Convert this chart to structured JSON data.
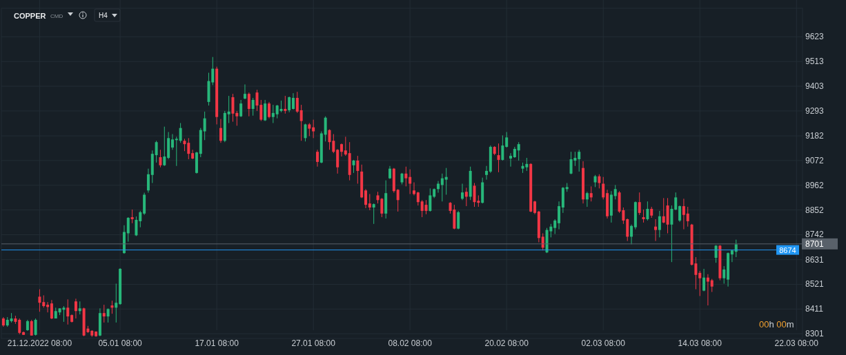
{
  "chart_data": {
    "type": "candlestick",
    "title": "COPPER",
    "annotations": [
      "CMD",
      "H4",
      "00h 00m"
    ],
    "categories": [
      null,
      null,
      null,
      null,
      null,
      null,
      null,
      null,
      null,
      "21.12.2022 08:00",
      null,
      null,
      null,
      null,
      null,
      null,
      null,
      null,
      null,
      null,
      null,
      null,
      null,
      null,
      null,
      null,
      null,
      null,
      null,
      "05.01 08:00",
      null,
      null,
      null,
      null,
      null,
      null,
      null,
      null,
      null,
      null,
      null,
      null,
      null,
      null,
      null,
      null,
      null,
      null,
      null,
      null,
      null,
      null,
      null,
      "17.01 08:00",
      null,
      null,
      null,
      null,
      null,
      null,
      null,
      null,
      null,
      null,
      null,
      null,
      null,
      null,
      null,
      null,
      null,
      null,
      null,
      null,
      null,
      null,
      null,
      "27.01 08:00",
      null,
      null,
      null,
      null,
      null,
      null,
      null,
      null,
      null,
      null,
      null,
      null,
      null,
      null,
      null,
      null,
      null,
      null,
      null,
      null,
      null,
      null,
      null,
      "08.02 08:00",
      null,
      null,
      null,
      null,
      null,
      null,
      null,
      null,
      null,
      null,
      null,
      null,
      null,
      null,
      null,
      null,
      null,
      null,
      null,
      null,
      null,
      null,
      null,
      "20.02 08:00",
      null,
      null,
      null,
      null,
      null,
      null,
      null,
      null,
      null,
      null,
      null,
      null,
      null,
      null,
      null,
      null,
      null,
      null,
      null,
      null,
      null,
      null,
      null,
      "02.03 08:00",
      null,
      null,
      null,
      null,
      null,
      null,
      null,
      null,
      null,
      null,
      null,
      null,
      null,
      null,
      null,
      null,
      null,
      null,
      null,
      null,
      null,
      null,
      null,
      "14.03 08:00",
      null,
      null,
      null,
      null,
      null,
      null,
      null,
      null,
      null,
      null,
      null,
      null,
      null,
      null,
      null,
      null,
      null,
      null,
      null,
      null,
      null,
      null,
      null,
      "22.03 08:00",
      null
    ],
    "ohlc": [
      [
        8369,
        8375,
        8332,
        8338
      ],
      [
        8338,
        8375,
        8332,
        8363
      ],
      [
        8357,
        8393,
        8351,
        8369
      ],
      [
        8369,
        8381,
        8345,
        8354
      ],
      [
        8363,
        8369,
        8299,
        8305
      ],
      [
        8308,
        8311,
        8296,
        8296
      ],
      [
        8317,
        8363,
        8314,
        8357
      ],
      [
        8357,
        8363,
        8293,
        8293
      ],
      [
        8296,
        8369,
        8293,
        8363
      ],
      [
        8466,
        8499,
        8399,
        8439
      ],
      [
        8442,
        8472,
        8417,
        8424
      ],
      [
        8430,
        8442,
        8396,
        8420
      ],
      [
        8436,
        8451,
        8366,
        8369
      ],
      [
        8369,
        8417,
        8369,
        8402
      ],
      [
        8396,
        8414,
        8384,
        8414
      ],
      [
        8408,
        8424,
        8354,
        8417
      ],
      [
        8417,
        8454,
        8342,
        8378
      ],
      [
        8384,
        8387,
        8351,
        8354
      ],
      [
        8445,
        8457,
        8369,
        8402
      ],
      [
        8402,
        8445,
        8387,
        8414
      ],
      [
        8414,
        8417,
        8290,
        8293
      ],
      [
        8324,
        8336,
        8305,
        8308
      ],
      [
        8314,
        8317,
        8287,
        8293
      ],
      [
        8311,
        8311,
        8287,
        8290
      ],
      [
        8293,
        8414,
        8290,
        8393
      ],
      [
        8393,
        8430,
        8351,
        8378
      ],
      [
        8378,
        8414,
        8351,
        8411
      ],
      [
        8427,
        8448,
        8390,
        8417
      ],
      [
        8417,
        8524,
        8351,
        8439
      ],
      [
        8433,
        8593,
        8430,
        8590
      ],
      [
        8660,
        8784,
        8657,
        8754
      ],
      [
        8748,
        8820,
        8711,
        8817
      ],
      [
        8820,
        8854,
        8793,
        8811
      ],
      [
        8739,
        8823,
        8736,
        8808
      ],
      [
        8802,
        8848,
        8775,
        8842
      ],
      [
        8836,
        8929,
        8830,
        8920
      ],
      [
        8939,
        9036,
        8929,
        9011
      ],
      [
        9008,
        9117,
        8972,
        9102
      ],
      [
        9096,
        9160,
        9063,
        9154
      ],
      [
        9087,
        9120,
        9042,
        9051
      ],
      [
        9051,
        9223,
        9048,
        9090
      ],
      [
        9084,
        9199,
        9078,
        9172
      ],
      [
        9130,
        9190,
        9120,
        9166
      ],
      [
        9163,
        9178,
        9048,
        9169
      ],
      [
        9160,
        9239,
        9151,
        9217
      ],
      [
        9160,
        9169,
        9114,
        9145
      ],
      [
        9151,
        9172,
        9078,
        9102
      ],
      [
        9105,
        9120,
        9078,
        9081
      ],
      [
        9017,
        9111,
        9014,
        9108
      ],
      [
        9102,
        9217,
        9087,
        9208
      ],
      [
        9202,
        9290,
        9163,
        9260
      ],
      [
        9333,
        9463,
        9317,
        9426
      ],
      [
        9420,
        9533,
        9408,
        9481
      ],
      [
        9481,
        9490,
        9233,
        9266
      ],
      [
        9217,
        9257,
        9151,
        9160
      ],
      [
        9160,
        9293,
        9154,
        9284
      ],
      [
        9278,
        9360,
        9239,
        9290
      ],
      [
        9354,
        9369,
        9245,
        9281
      ],
      [
        9284,
        9293,
        9227,
        9269
      ],
      [
        9269,
        9342,
        9266,
        9326
      ],
      [
        9348,
        9411,
        9345,
        9369
      ],
      [
        9369,
        9375,
        9269,
        9302
      ],
      [
        9302,
        9351,
        9272,
        9342
      ],
      [
        9375,
        9387,
        9293,
        9317
      ],
      [
        9320,
        9342,
        9248,
        9254
      ],
      [
        9251,
        9342,
        9248,
        9326
      ],
      [
        9326,
        9333,
        9260,
        9266
      ],
      [
        9266,
        9320,
        9239,
        9284
      ],
      [
        9278,
        9320,
        9260,
        9317
      ],
      [
        9293,
        9339,
        9287,
        9302
      ],
      [
        9302,
        9360,
        9281,
        9293
      ],
      [
        9296,
        9357,
        9287,
        9354
      ],
      [
        9302,
        9372,
        9299,
        9351
      ],
      [
        9351,
        9378,
        9284,
        9290
      ],
      [
        9296,
        9320,
        9160,
        9248
      ],
      [
        9172,
        9236,
        9157,
        9233
      ],
      [
        9233,
        9239,
        9181,
        9214
      ],
      [
        9220,
        9254,
        9172,
        9202
      ],
      [
        9111,
        9120,
        9045,
        9066
      ],
      [
        9063,
        9202,
        9060,
        9193
      ],
      [
        9187,
        9269,
        9157,
        9263
      ],
      [
        9208,
        9211,
        9120,
        9154
      ],
      [
        9160,
        9190,
        9105,
        9111
      ],
      [
        9120,
        9123,
        9014,
        9042
      ],
      [
        9145,
        9148,
        9090,
        9111
      ],
      [
        9117,
        9178,
        9093,
        9099
      ],
      [
        9105,
        9154,
        8984,
        9008
      ],
      [
        9051,
        9075,
        9017,
        9072
      ],
      [
        9072,
        9093,
        8969,
        9026
      ],
      [
        9023,
        9054,
        8905,
        8908
      ],
      [
        8939,
        8945,
        8860,
        8875
      ],
      [
        8881,
        8923,
        8851,
        8863
      ],
      [
        8863,
        8881,
        8790,
        8878
      ],
      [
        8917,
        8933,
        8881,
        8896
      ],
      [
        8902,
        8905,
        8820,
        8836
      ],
      [
        8836,
        8984,
        8814,
        8927
      ],
      [
        8993,
        9048,
        8990,
        9036
      ],
      [
        9036,
        9039,
        8929,
        8936
      ],
      [
        8942,
        8945,
        8845,
        8896
      ],
      [
        8975,
        9017,
        8966,
        9014
      ],
      [
        9014,
        9045,
        8957,
        8993
      ],
      [
        8999,
        9033,
        8923,
        8969
      ],
      [
        8939,
        8975,
        8917,
        8923
      ],
      [
        8930,
        8933,
        8872,
        8887
      ],
      [
        8890,
        8896,
        8820,
        8848
      ],
      [
        8875,
        8896,
        8833,
        8848
      ],
      [
        8848,
        8948,
        8845,
        8917
      ],
      [
        8911,
        8948,
        8905,
        8945
      ],
      [
        8945,
        8981,
        8929,
        8969
      ],
      [
        8963,
        9014,
        8890,
        8993
      ],
      [
        8987,
        9039,
        8920,
        8999
      ],
      [
        8884,
        8887,
        8836,
        8848
      ],
      [
        8854,
        8875,
        8766,
        8769
      ],
      [
        8769,
        8848,
        8766,
        8842
      ],
      [
        8902,
        8969,
        8896,
        8930
      ],
      [
        8933,
        8951,
        8869,
        8911
      ],
      [
        8911,
        9045,
        8896,
        9026
      ],
      [
        8960,
        8972,
        8866,
        8887
      ],
      [
        8893,
        8917,
        8866,
        8884
      ],
      [
        8884,
        8996,
        8881,
        8975
      ],
      [
        9008,
        9048,
        8987,
        9026
      ],
      [
        9023,
        9139,
        9017,
        9133
      ],
      [
        9133,
        9136,
        9096,
        9102
      ],
      [
        9096,
        9148,
        9020,
        9075
      ],
      [
        9075,
        9184,
        9072,
        9139
      ],
      [
        9133,
        9199,
        9130,
        9175
      ],
      [
        9081,
        9105,
        9045,
        9093
      ],
      [
        9087,
        9133,
        9084,
        9124
      ],
      [
        9117,
        9154,
        9072,
        9145
      ],
      [
        9036,
        9063,
        9017,
        9048
      ],
      [
        9042,
        9084,
        9026,
        9057
      ],
      [
        9057,
        9060,
        8842,
        8845
      ],
      [
        8890,
        8893,
        8833,
        8839
      ],
      [
        8845,
        8848,
        8708,
        8727
      ],
      [
        8733,
        8748,
        8672,
        8684
      ],
      [
        8663,
        8772,
        8660,
        8763
      ],
      [
        8757,
        8790,
        8730,
        8778
      ],
      [
        8772,
        8811,
        8745,
        8805
      ],
      [
        8793,
        8890,
        8766,
        8869
      ],
      [
        8863,
        8954,
        8839,
        8951
      ],
      [
        8945,
        8972,
        8933,
        8954
      ],
      [
        9014,
        9111,
        9011,
        9078
      ],
      [
        9072,
        9111,
        9048,
        9084
      ],
      [
        9078,
        9120,
        9023,
        9111
      ],
      [
        9039,
        9069,
        8881,
        8899
      ],
      [
        8899,
        8933,
        8866,
        8927
      ],
      [
        8927,
        8957,
        8890,
        8908
      ],
      [
        8975,
        9008,
        8954,
        9002
      ],
      [
        9002,
        9011,
        8948,
        8972
      ],
      [
        8969,
        8999,
        8899,
        8908
      ],
      [
        8927,
        8942,
        8814,
        8824
      ],
      [
        8827,
        8936,
        8796,
        8920
      ],
      [
        8914,
        8963,
        8899,
        8945
      ],
      [
        8930,
        8936,
        8839,
        8845
      ],
      [
        8851,
        8863,
        8790,
        8805
      ],
      [
        8811,
        8814,
        8714,
        8733
      ],
      [
        8733,
        8787,
        8699,
        8781
      ],
      [
        8775,
        8890,
        8766,
        8887
      ],
      [
        8887,
        8930,
        8830,
        8839
      ],
      [
        8820,
        8854,
        8796,
        8811
      ],
      [
        8811,
        8890,
        8805,
        8857
      ],
      [
        8857,
        8866,
        8817,
        8827
      ],
      [
        8778,
        8811,
        8714,
        8763
      ],
      [
        8763,
        8848,
        8730,
        8824
      ],
      [
        8824,
        8905,
        8793,
        8796
      ],
      [
        8872,
        8905,
        8748,
        8787
      ],
      [
        8787,
        8872,
        8620,
        8857
      ],
      [
        8854,
        8930,
        8851,
        8908
      ],
      [
        8805,
        8872,
        8799,
        8869
      ],
      [
        8869,
        8902,
        8766,
        8830
      ],
      [
        8836,
        8866,
        8778,
        8802
      ],
      [
        8787,
        8790,
        8605,
        8608
      ],
      [
        8614,
        8642,
        8499,
        8563
      ],
      [
        8572,
        8581,
        8469,
        8548
      ],
      [
        8493,
        8590,
        8490,
        8551
      ],
      [
        8551,
        8566,
        8427,
        8533
      ],
      [
        8539,
        8545,
        8487,
        8511
      ],
      [
        8639,
        8696,
        8617,
        8693
      ],
      [
        8693,
        8696,
        8539,
        8548
      ],
      [
        8548,
        8602,
        8524,
        8587
      ],
      [
        8542,
        8663,
        8511,
        8660
      ],
      [
        8654,
        8675,
        8620,
        8672
      ],
      [
        8666,
        8720,
        8642,
        8699
      ],
      null,
      null,
      null,
      null,
      null,
      null,
      null,
      null,
      null,
      null,
      null,
      null,
      null,
      null,
      null,
      null
    ],
    "ylim": [
      8280,
      9750
    ],
    "yticks": [
      8301,
      8411,
      8521,
      8631,
      8742,
      8852,
      8962,
      9072,
      9182,
      9293,
      9403,
      9513,
      9623
    ],
    "grid": true,
    "ref_lines": [
      {
        "axis": "y",
        "value": 8701,
        "label": "8701",
        "color": "#59616a"
      },
      {
        "axis": "y",
        "value": 8674,
        "label": "8674",
        "color": "#2196f3"
      }
    ]
  }
}
